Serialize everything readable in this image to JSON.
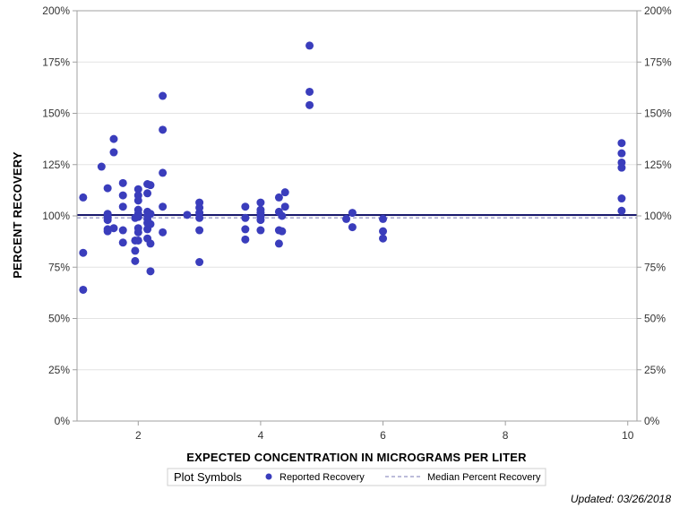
{
  "colors": {
    "marker": "#3a3dbc",
    "reference_line": "#1a1a6e",
    "median_line": "#7a7ab5",
    "grid": "#e3e3e3",
    "frame": "#a0a0a0"
  },
  "legend": {
    "title": "Plot Symbols",
    "items": [
      {
        "label": "Reported Recovery",
        "symbol": "filled-circle"
      },
      {
        "label": "Median Percent Recovery",
        "symbol": "dashed-line"
      }
    ]
  },
  "footer": {
    "updated": "Updated: 03/26/2018"
  },
  "chart_data": {
    "type": "scatter",
    "xlabel": "EXPECTED CONCENTRATION IN MICROGRAMS PER LITER",
    "ylabel": "PERCENT RECOVERY",
    "xlim": [
      1,
      10.15
    ],
    "ylim": [
      0,
      200
    ],
    "x_ticks": [
      2,
      4,
      6,
      8,
      10
    ],
    "x_tick_labels": [
      "2",
      "4",
      "6",
      "8",
      "10"
    ],
    "y_ticks": [
      0,
      25,
      50,
      75,
      100,
      125,
      150,
      175,
      200
    ],
    "y_tick_labels": [
      "0%",
      "25%",
      "50%",
      "75%",
      "100%",
      "125%",
      "150%",
      "175%",
      "200%"
    ],
    "y_axis_right_mirror": true,
    "grid": true,
    "reference_line_y": 100,
    "median_line_y": 99.5,
    "series": [
      {
        "name": "Reported Recovery",
        "points": [
          [
            1.1,
            109
          ],
          [
            1.1,
            82
          ],
          [
            1.1,
            64
          ],
          [
            1.4,
            124
          ],
          [
            1.5,
            113.5
          ],
          [
            1.5,
            101
          ],
          [
            1.5,
            99.5
          ],
          [
            1.5,
            98
          ],
          [
            1.5,
            93.5
          ],
          [
            1.5,
            92.5
          ],
          [
            1.6,
            137.5
          ],
          [
            1.6,
            131
          ],
          [
            1.6,
            94
          ],
          [
            1.75,
            116
          ],
          [
            1.75,
            110
          ],
          [
            1.75,
            104.5
          ],
          [
            1.75,
            93
          ],
          [
            1.75,
            87
          ],
          [
            1.95,
            99
          ],
          [
            1.95,
            88
          ],
          [
            1.95,
            83
          ],
          [
            1.95,
            78
          ],
          [
            2.0,
            113
          ],
          [
            2.0,
            110
          ],
          [
            2.0,
            107.5
          ],
          [
            2.0,
            103
          ],
          [
            2.0,
            101
          ],
          [
            2.0,
            99.5
          ],
          [
            2.0,
            94
          ],
          [
            2.0,
            92
          ],
          [
            2.0,
            88
          ],
          [
            2.15,
            115.5
          ],
          [
            2.15,
            111
          ],
          [
            2.15,
            102
          ],
          [
            2.15,
            100
          ],
          [
            2.15,
            98.5
          ],
          [
            2.15,
            96.5
          ],
          [
            2.15,
            93.5
          ],
          [
            2.15,
            89
          ],
          [
            2.2,
            115
          ],
          [
            2.2,
            101
          ],
          [
            2.2,
            96
          ],
          [
            2.2,
            86.5
          ],
          [
            2.2,
            73
          ],
          [
            2.4,
            158.5
          ],
          [
            2.4,
            142
          ],
          [
            2.4,
            121
          ],
          [
            2.4,
            104.5
          ],
          [
            2.4,
            92
          ],
          [
            2.8,
            100.5
          ],
          [
            3.0,
            106.5
          ],
          [
            3.0,
            104
          ],
          [
            3.0,
            101.5
          ],
          [
            3.0,
            99
          ],
          [
            3.0,
            93
          ],
          [
            3.0,
            77.5
          ],
          [
            3.75,
            104.5
          ],
          [
            3.75,
            99
          ],
          [
            3.75,
            93.5
          ],
          [
            3.75,
            88.5
          ],
          [
            4.0,
            106.5
          ],
          [
            4.0,
            103
          ],
          [
            4.0,
            101.5
          ],
          [
            4.0,
            99.5
          ],
          [
            4.0,
            98
          ],
          [
            4.0,
            93
          ],
          [
            4.3,
            109
          ],
          [
            4.3,
            102
          ],
          [
            4.3,
            93
          ],
          [
            4.3,
            86.5
          ],
          [
            4.35,
            100
          ],
          [
            4.35,
            92.5
          ],
          [
            4.4,
            111.5
          ],
          [
            4.4,
            104.5
          ],
          [
            4.8,
            183
          ],
          [
            4.8,
            160.5
          ],
          [
            4.8,
            154
          ],
          [
            5.4,
            98.5
          ],
          [
            5.5,
            101.5
          ],
          [
            5.5,
            94.5
          ],
          [
            6.0,
            98.5
          ],
          [
            6.0,
            92.5
          ],
          [
            6.0,
            89
          ],
          [
            9.9,
            135.5
          ],
          [
            9.9,
            130.5
          ],
          [
            9.9,
            126
          ],
          [
            9.9,
            123.5
          ],
          [
            9.9,
            108.5
          ],
          [
            9.9,
            102.5
          ]
        ]
      }
    ]
  }
}
